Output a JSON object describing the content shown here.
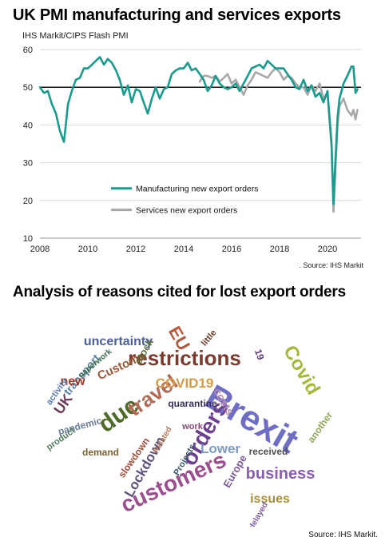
{
  "header": {
    "title": "UK PMI manufacturing and services exports",
    "source_label": "IHS Markit/CIPS Flash PMI",
    "source_note": ". Source: IHS Markit"
  },
  "chart_data": {
    "type": "line",
    "ylim": [
      10,
      60
    ],
    "xlim": [
      2008,
      2021.4
    ],
    "yticks": [
      "10",
      "20",
      "30",
      "40",
      "50",
      "60"
    ],
    "xticks": [
      "2008",
      "2010",
      "2012",
      "2014",
      "2016",
      "2018",
      "2020"
    ],
    "reference_line": 50,
    "grid": "horizontal",
    "legend_position": "bottom-center",
    "series": [
      {
        "name": "Manufacturing new export orders",
        "color": "#1a9b8e",
        "x": [
          2008.0,
          2008.17,
          2008.33,
          2008.5,
          2008.67,
          2008.83,
          2009.0,
          2009.08,
          2009.17,
          2009.33,
          2009.5,
          2009.67,
          2009.83,
          2010.0,
          2010.17,
          2010.33,
          2010.5,
          2010.67,
          2010.83,
          2011.0,
          2011.17,
          2011.33,
          2011.5,
          2011.67,
          2011.83,
          2012.0,
          2012.17,
          2012.33,
          2012.5,
          2012.67,
          2012.83,
          2013.0,
          2013.17,
          2013.33,
          2013.5,
          2013.67,
          2013.83,
          2014.0,
          2014.17,
          2014.33,
          2014.5,
          2014.67,
          2014.83,
          2015.0,
          2015.17,
          2015.33,
          2015.5,
          2015.67,
          2015.83,
          2016.0,
          2016.17,
          2016.33,
          2016.5,
          2016.67,
          2016.83,
          2017.0,
          2017.17,
          2017.33,
          2017.5,
          2017.67,
          2017.83,
          2018.0,
          2018.17,
          2018.33,
          2018.5,
          2018.67,
          2018.83,
          2019.0,
          2019.17,
          2019.33,
          2019.5,
          2019.67,
          2019.83,
          2020.0,
          2020.17,
          2020.25,
          2020.33,
          2020.42,
          2020.5,
          2020.67,
          2020.83,
          2021.0,
          2021.08,
          2021.17,
          2021.25
        ],
        "values": [
          50.0,
          48.5,
          49.0,
          45.5,
          43.0,
          38.5,
          35.5,
          40.0,
          45.5,
          49.0,
          52.0,
          52.5,
          55.0,
          55.0,
          56.0,
          57.0,
          58.0,
          56.0,
          57.5,
          56.5,
          54.5,
          52.0,
          48.0,
          50.5,
          46.0,
          49.5,
          49.0,
          46.0,
          43.0,
          47.0,
          50.0,
          47.0,
          49.5,
          50.0,
          53.5,
          54.5,
          55.0,
          55.0,
          56.5,
          54.5,
          55.0,
          53.5,
          52.0,
          49.0,
          50.5,
          53.0,
          51.0,
          50.0,
          49.5,
          50.0,
          51.0,
          49.0,
          51.0,
          53.0,
          55.0,
          55.5,
          56.0,
          55.0,
          57.0,
          56.0,
          55.0,
          55.0,
          55.0,
          53.5,
          52.0,
          50.0,
          49.5,
          52.0,
          49.0,
          50.5,
          47.5,
          48.5,
          46.0,
          49.0,
          35.0,
          19.0,
          30.5,
          42.0,
          47.0,
          51.0,
          53.0,
          55.5,
          55.5,
          48.5,
          49.5
        ]
      },
      {
        "name": "Services new export orders",
        "color": "#a8a8a8",
        "x": [
          2014.67,
          2014.83,
          2015.0,
          2015.17,
          2015.33,
          2015.5,
          2015.67,
          2015.83,
          2016.0,
          2016.17,
          2016.33,
          2016.5,
          2016.67,
          2016.83,
          2017.0,
          2017.17,
          2017.33,
          2017.5,
          2017.67,
          2017.83,
          2018.0,
          2018.17,
          2018.33,
          2018.5,
          2018.67,
          2018.83,
          2019.0,
          2019.17,
          2019.33,
          2019.5,
          2019.67,
          2019.83,
          2020.0,
          2020.17,
          2020.25,
          2020.33,
          2020.42,
          2020.5,
          2020.67,
          2020.83,
          2021.0,
          2021.08,
          2021.17,
          2021.25
        ],
        "values": [
          51.5,
          53.0,
          53.0,
          52.5,
          53.0,
          51.5,
          52.5,
          53.5,
          51.0,
          52.0,
          50.0,
          48.0,
          50.5,
          52.0,
          54.0,
          53.5,
          53.0,
          52.5,
          54.0,
          55.0,
          54.0,
          52.0,
          53.0,
          52.5,
          51.0,
          50.0,
          50.0,
          48.0,
          50.5,
          49.0,
          51.0,
          47.0,
          48.5,
          34.0,
          17.0,
          28.0,
          40.0,
          45.0,
          47.0,
          44.0,
          42.5,
          44.0,
          41.5,
          44.0
        ]
      }
    ]
  },
  "cloud": {
    "title": "Analysis of reasons cited for lost export orders",
    "source": "Source: IHS Markit.",
    "words": [
      {
        "t": "Brexit",
        "c": "#6e6fc4"
      },
      {
        "t": "customers",
        "c": "#9b4f8e"
      },
      {
        "t": "restrictions",
        "c": "#7a3b2e"
      },
      {
        "t": "orders",
        "c": "#6d3f8f"
      },
      {
        "t": "due",
        "c": "#4f6b2a"
      },
      {
        "t": "travel",
        "c": "#b56a56"
      },
      {
        "t": "Covid",
        "c": "#a5b83c"
      },
      {
        "t": "business",
        "c": "#8a5fb0"
      },
      {
        "t": "COVID19",
        "c": "#d79a4b"
      },
      {
        "t": "uncertainty",
        "c": "#4d5f9b"
      },
      {
        "t": "Customs",
        "c": "#9a5a3a"
      },
      {
        "t": "transport",
        "c": "#5b7fa7"
      },
      {
        "t": "EU",
        "c": "#b35a3f"
      },
      {
        "t": "stock",
        "c": "#5b6f3a"
      },
      {
        "t": "UK",
        "c": "#6a3c5a"
      },
      {
        "t": "new",
        "c": "#9a3c28"
      },
      {
        "t": "Lockdown",
        "c": "#5e5078"
      },
      {
        "t": "Lower",
        "c": "#7d9bc4"
      },
      {
        "t": "issues",
        "c": "#a58f3a"
      },
      {
        "t": "costs",
        "c": "#b98ab0"
      },
      {
        "t": "quarantine",
        "c": "#3a2f5a"
      },
      {
        "t": "received",
        "c": "#4e4e4e"
      },
      {
        "t": "Europe",
        "c": "#7b5b9b"
      },
      {
        "t": "another",
        "c": "#8fa85b"
      },
      {
        "t": "demand",
        "c": "#7a6030"
      },
      {
        "t": "slowdown",
        "c": "#a04a3a"
      },
      {
        "t": "pandemic",
        "c": "#6b7f9b"
      },
      {
        "t": "product",
        "c": "#4f7a5a"
      },
      {
        "t": "Projects",
        "c": "#3a5a6a"
      },
      {
        "t": "work",
        "c": "#8a4a7a"
      },
      {
        "t": "activity",
        "c": "#5a7ab0"
      },
      {
        "t": "little",
        "c": "#6b3f2a"
      },
      {
        "t": "19",
        "c": "#5a3a7a"
      },
      {
        "t": "Related",
        "c": "#b0785a"
      },
      {
        "t": "delayed",
        "c": "#7a5a9a"
      },
      {
        "t": "paperwork",
        "c": "#3a6a4a"
      }
    ]
  }
}
